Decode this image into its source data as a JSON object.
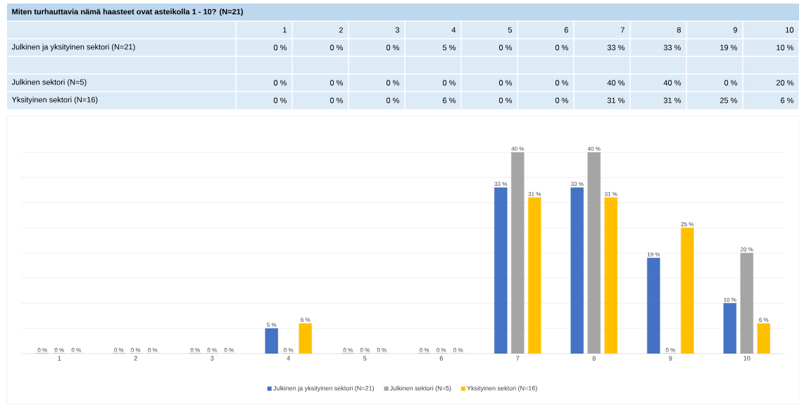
{
  "chart_data": {
    "type": "bar",
    "title": "Miten turhauttavia nämä haasteet ovat asteikolla 1 - 10? (N=21)",
    "categories": [
      "1",
      "2",
      "3",
      "4",
      "5",
      "6",
      "7",
      "8",
      "9",
      "10"
    ],
    "series": [
      {
        "name": "Julkinen ja yksityinen sektori (N=21)",
        "color": "#4472c4",
        "values": [
          0,
          0,
          0,
          5,
          0,
          0,
          33,
          33,
          19,
          10
        ],
        "value_labels": [
          "0 %",
          "0 %",
          "0 %",
          "5 %",
          "0 %",
          "0 %",
          "33 %",
          "33 %",
          "19 %",
          "10 %"
        ]
      },
      {
        "name": "Julkinen sektori (N=5)",
        "color": "#a5a5a5",
        "values": [
          0,
          0,
          0,
          0,
          0,
          0,
          40,
          40,
          0,
          20
        ],
        "value_labels": [
          "0 %",
          "0 %",
          "0 %",
          "0 %",
          "0 %",
          "0 %",
          "40 %",
          "40 %",
          "0 %",
          "20 %"
        ]
      },
      {
        "name": "Yksityinen sektori (N=16)",
        "color": "#ffc000",
        "values": [
          0,
          0,
          0,
          6,
          0,
          0,
          31,
          31,
          25,
          6
        ],
        "value_labels": [
          "0 %",
          "0 %",
          "0 %",
          "6 %",
          "0 %",
          "0 %",
          "31 %",
          "31 %",
          "25 %",
          "6 %"
        ]
      }
    ],
    "tick_labels": "x",
    "grid": "y",
    "legend": "bottom"
  }
}
